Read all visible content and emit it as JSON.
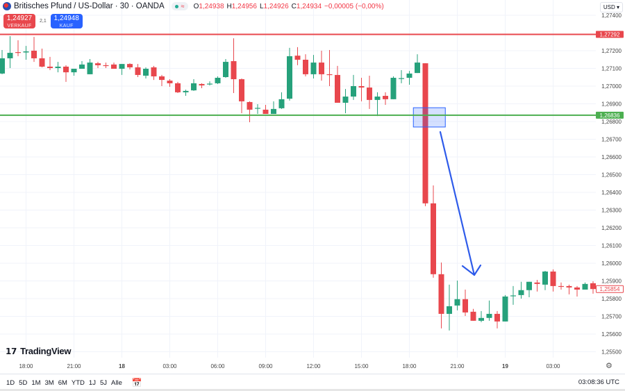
{
  "header": {
    "symbol_title": "Britisches Pfund / US-Dollar · 30 · OANDA",
    "status_icons": [
      "market-open-dot-icon",
      "wave-icon"
    ],
    "ohlc": {
      "o_label": "O",
      "o": "1,24938",
      "h_label": "H",
      "h": "1,24956",
      "l_label": "L",
      "l": "1,24926",
      "c_label": "C",
      "c": "1,24934",
      "change": "−0,00005 (−0,00%)"
    }
  },
  "trade": {
    "sell_price": "1,24927",
    "sell_label": "VERKAUF",
    "spread": "2,1",
    "buy_price": "1,24948",
    "buy_label": "KAUF"
  },
  "currency_selector": "USD ▾",
  "logo_text": "TradingView",
  "bottom": {
    "ranges": [
      "1D",
      "5D",
      "1M",
      "3M",
      "6M",
      "YTD",
      "1J",
      "5J",
      "Alle"
    ],
    "clock": "03:08:36 UTC"
  },
  "colors": {
    "up": "#26a17b",
    "down": "#e8474d",
    "resistance": "#e8474d",
    "support": "#4caf50",
    "arrow": "#2e5bea",
    "box": "#2962ff"
  },
  "chart_data": {
    "type": "candlestick",
    "ylim": [
      1.255,
      1.2745
    ],
    "price_ticks": [
      "1,27400",
      "1,27200",
      "1,27100",
      "1,27000",
      "1,26900",
      "1,26800",
      "1,26700",
      "1,26600",
      "1,26500",
      "1,26400",
      "1,26300",
      "1,26200",
      "1,26100",
      "1,26000",
      "1,25900",
      "1,25800",
      "1,25700",
      "1,25600",
      "1,25500"
    ],
    "price_tick_values": [
      1.274,
      1.272,
      1.271,
      1.27,
      1.269,
      1.268,
      1.267,
      1.266,
      1.265,
      1.264,
      1.263,
      1.262,
      1.261,
      1.26,
      1.259,
      1.258,
      1.257,
      1.256,
      1.255
    ],
    "time_ticks": [
      {
        "label": "18:00",
        "candle": 3,
        "bold": false
      },
      {
        "label": "21:00",
        "candle": 9,
        "bold": false
      },
      {
        "label": "18",
        "candle": 15,
        "bold": true
      },
      {
        "label": "03:00",
        "candle": 21,
        "bold": false
      },
      {
        "label": "06:00",
        "candle": 27,
        "bold": false
      },
      {
        "label": "09:00",
        "candle": 33,
        "bold": false
      },
      {
        "label": "12:00",
        "candle": 39,
        "bold": false
      },
      {
        "label": "15:00",
        "candle": 45,
        "bold": false
      },
      {
        "label": "18:00",
        "candle": 51,
        "bold": false
      },
      {
        "label": "21:00",
        "candle": 57,
        "bold": false
      },
      {
        "label": "19",
        "candle": 63,
        "bold": true
      },
      {
        "label": "03:00",
        "candle": 69,
        "bold": false
      }
    ],
    "horizontal_lines": [
      {
        "price": 1.27292,
        "label": "1,27292",
        "color": "#e8474d"
      },
      {
        "price": 1.26836,
        "label": "1,26836",
        "color": "#4caf50"
      }
    ],
    "last_price": {
      "price": 1.25854,
      "label": "1,25854"
    },
    "zone_box": {
      "from_candle": 51.5,
      "to_candle": 55.5,
      "top": 1.26878,
      "bottom": 1.26769
    },
    "ohlc": [
      [
        1.27071,
        1.27204,
        1.27067,
        1.27157
      ],
      [
        1.27157,
        1.27282,
        1.27102,
        1.27188
      ],
      [
        1.27192,
        1.27259,
        1.27169,
        1.2719
      ],
      [
        1.2719,
        1.27227,
        1.27149,
        1.27196
      ],
      [
        1.272,
        1.27278,
        1.27137,
        1.27157
      ],
      [
        1.27157,
        1.27212,
        1.27106,
        1.2711
      ],
      [
        1.2711,
        1.27165,
        1.2709,
        1.27102
      ],
      [
        1.27102,
        1.27137,
        1.27078,
        1.2711
      ],
      [
        1.2711,
        1.27118,
        1.27024,
        1.27078
      ],
      [
        1.27078,
        1.27098,
        1.27059,
        1.27098
      ],
      [
        1.27098,
        1.27141,
        1.27098,
        1.27122
      ],
      [
        1.27067,
        1.27153,
        1.27067,
        1.27133
      ],
      [
        1.27129,
        1.27137,
        1.27102,
        1.27118
      ],
      [
        1.27118,
        1.27133,
        1.27102,
        1.27116
      ],
      [
        1.27122,
        1.27133,
        1.27098,
        1.27098
      ],
      [
        1.27098,
        1.27125,
        1.27063,
        1.27125
      ],
      [
        1.27125,
        1.27129,
        1.27094,
        1.27106
      ],
      [
        1.27106,
        1.27125,
        1.27051,
        1.27063
      ],
      [
        1.27059,
        1.27106,
        1.27043,
        1.27098
      ],
      [
        1.27106,
        1.27114,
        1.27035,
        1.27055
      ],
      [
        1.27055,
        1.27063,
        1.27,
        1.27035
      ],
      [
        1.27031,
        1.27039,
        1.26996,
        1.27016
      ],
      [
        1.27016,
        1.27024,
        1.26961,
        1.26965
      ],
      [
        1.26965,
        1.2698,
        1.26945,
        1.26973
      ],
      [
        1.26976,
        1.27039,
        1.26973,
        1.27016
      ],
      [
        1.27012,
        1.27016,
        1.26988,
        1.27004
      ],
      [
        1.27012,
        1.27027,
        1.27004,
        1.27014
      ],
      [
        1.27016,
        1.27055,
        1.27012,
        1.27047
      ],
      [
        1.27051,
        1.27153,
        1.27047,
        1.27137
      ],
      [
        1.27141,
        1.2727,
        1.26961,
        1.27039
      ],
      [
        1.27039,
        1.27043,
        1.26847,
        1.26914
      ],
      [
        1.2691,
        1.26914,
        1.26796,
        1.26867
      ],
      [
        1.26875,
        1.26898,
        1.26843,
        1.26877
      ],
      [
        1.26867,
        1.26894,
        1.26843,
        1.26843
      ],
      [
        1.26843,
        1.26914,
        1.26843,
        1.26871
      ],
      [
        1.26875,
        1.26965,
        1.26871,
        1.26926
      ],
      [
        1.26929,
        1.27216,
        1.26918,
        1.27169
      ],
      [
        1.27172,
        1.2722,
        1.27118,
        1.27149
      ],
      [
        1.27149,
        1.2718,
        1.27055,
        1.27067
      ],
      [
        1.27067,
        1.27176,
        1.27043,
        1.27133
      ],
      [
        1.27133,
        1.272,
        1.27031,
        1.27067
      ],
      [
        1.27067,
        1.27204,
        1.27,
        1.27065
      ],
      [
        1.27063,
        1.27114,
        1.26906,
        1.26906
      ],
      [
        1.26906,
        1.26984,
        1.26847,
        1.26941
      ],
      [
        1.26941,
        1.27063,
        1.26922,
        1.27
      ],
      [
        1.27,
        1.27047,
        1.26914,
        1.26992
      ],
      [
        1.26992,
        1.27059,
        1.26871,
        1.26922
      ],
      [
        1.26922,
        1.26965,
        1.26831,
        1.26941
      ],
      [
        1.26945,
        1.26965,
        1.26894,
        1.26926
      ],
      [
        1.26926,
        1.27055,
        1.26926,
        1.27047
      ],
      [
        1.27043,
        1.2709,
        1.27016,
        1.27045
      ],
      [
        1.27047,
        1.27086,
        1.27008,
        1.27071
      ],
      [
        1.27074,
        1.2718,
        1.27074,
        1.27133
      ],
      [
        1.27129,
        1.27129,
        1.26322,
        1.26338
      ],
      [
        1.26338,
        1.26439,
        1.25918,
        1.25938
      ],
      [
        1.25938,
        1.26004,
        1.25632,
        1.25714
      ],
      [
        1.25714,
        1.25879,
        1.2562,
        1.25757
      ],
      [
        1.25761,
        1.25902,
        1.25734,
        1.25797
      ],
      [
        1.25797,
        1.25851,
        1.25702,
        1.25722
      ],
      [
        1.25726,
        1.25742,
        1.25675,
        1.25675
      ],
      [
        1.25675,
        1.2573,
        1.25667,
        1.25691
      ],
      [
        1.25691,
        1.25789,
        1.25675,
        1.25714
      ],
      [
        1.25714,
        1.2573,
        1.25632,
        1.25671
      ],
      [
        1.25671,
        1.2582,
        1.25671,
        1.25812
      ],
      [
        1.25816,
        1.25871,
        1.25765,
        1.25818
      ],
      [
        1.2582,
        1.25895,
        1.258,
        1.25848
      ],
      [
        1.25848,
        1.25895,
        1.25808,
        1.25895
      ],
      [
        1.25891,
        1.25906,
        1.2584,
        1.25883
      ],
      [
        1.25879,
        1.25957,
        1.25848,
        1.25953
      ],
      [
        1.25953,
        1.25965,
        1.2584,
        1.25871
      ],
      [
        1.25871,
        1.25891,
        1.25851,
        1.25869
      ],
      [
        1.25871,
        1.25879,
        1.25824,
        1.25863
      ],
      [
        1.25863,
        1.25871,
        1.25812,
        1.25851
      ],
      [
        1.25851,
        1.25891,
        1.25851,
        1.25883
      ],
      [
        1.25887,
        1.25898,
        1.25828,
        1.25854
      ]
    ]
  }
}
